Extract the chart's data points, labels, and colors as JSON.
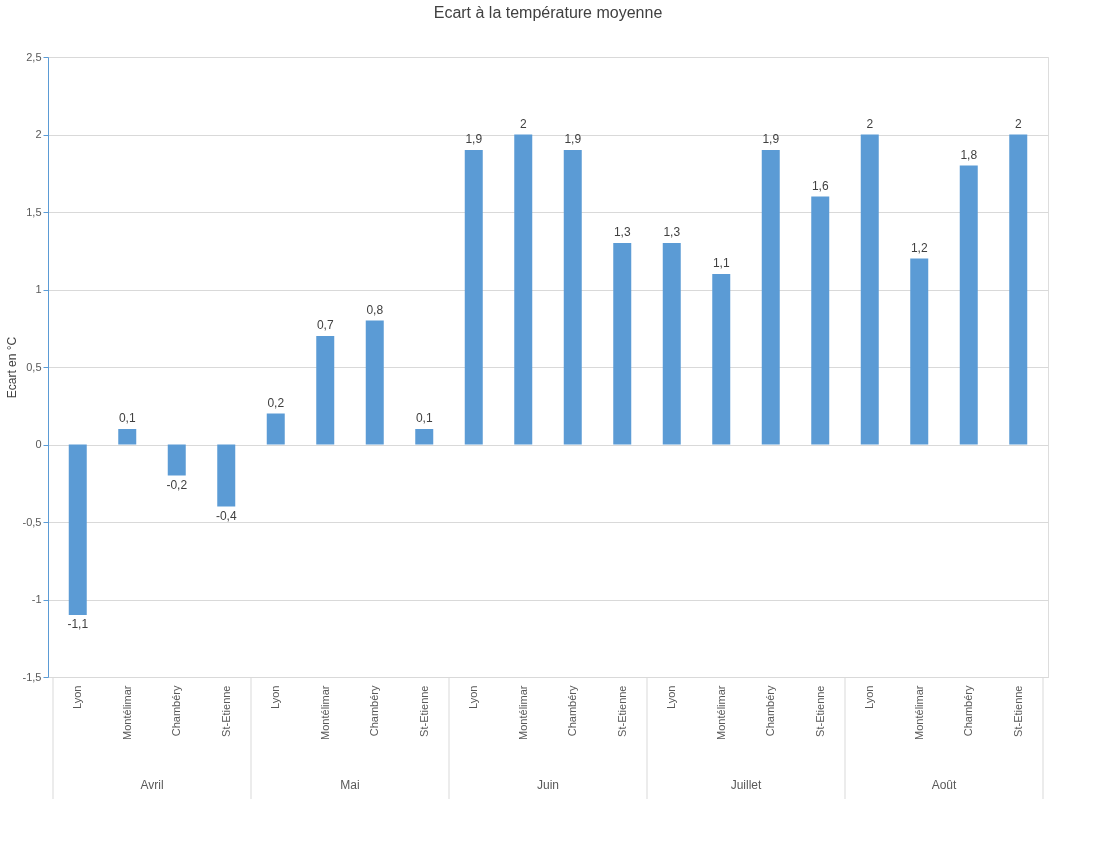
{
  "chart_data": {
    "type": "bar",
    "title": "Ecart à la température moyenne",
    "ylabel": "Ecart en °C",
    "categories": [
      "Lyon",
      "Montélimar",
      "Chambéry",
      "St-Etienne",
      "Lyon",
      "Montélimar",
      "Chambéry",
      "St-Etienne",
      "Lyon",
      "Montélimar",
      "Chambéry",
      "St-Etienne",
      "Lyon",
      "Montélimar",
      "Chambéry",
      "St-Etienne",
      "Lyon",
      "Montélimar",
      "Chambéry",
      "St-Etienne"
    ],
    "annotations": [
      "Avril",
      "Mai",
      "Juin",
      "Juillet",
      "Août"
    ],
    "values": [
      -1.1,
      0.1,
      -0.2,
      -0.4,
      0.2,
      0.7,
      0.8,
      0.1,
      1.9,
      2,
      1.9,
      1.3,
      1.3,
      1.1,
      1.9,
      1.6,
      2,
      1.2,
      1.8,
      2
    ],
    "value_labels": [
      "-1,1",
      "0,1",
      "-0,2",
      "-0,4",
      "0,2",
      "0,7",
      "0,8",
      "0,1",
      "1,9",
      "2",
      "1,9",
      "1,3",
      "1,3",
      "1,1",
      "1,9",
      "1,6",
      "2",
      "1,2",
      "1,8",
      "2"
    ],
    "color": "#5b9bd5",
    "ylim": [
      -1.5,
      2.5
    ],
    "yticks": [
      {
        "value": -1.5,
        "label": "-1,5"
      },
      -1,
      {
        "value": -0.5,
        "label": "-0,5"
      },
      0,
      {
        "value": 0.5,
        "label": "0,5"
      },
      1,
      {
        "value": 1.5,
        "label": "1,5"
      },
      2,
      {
        "value": 2.5,
        "label": "2,5"
      }
    ],
    "grid": "y"
  }
}
